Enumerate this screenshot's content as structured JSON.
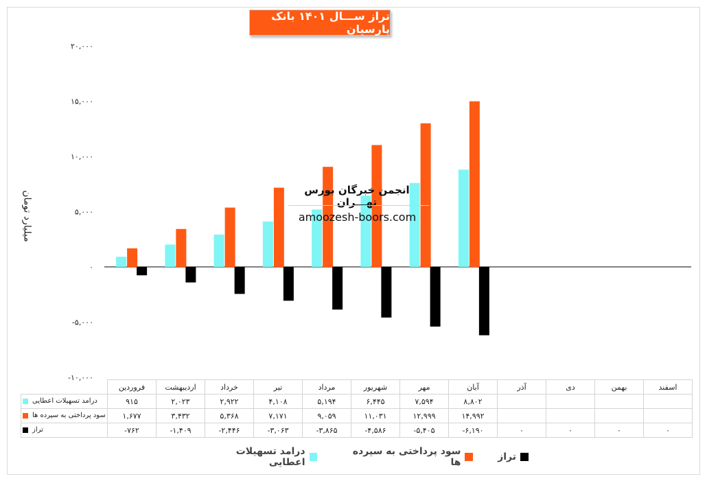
{
  "title": "تراز ســـال ۱۴۰۱ بانک پارسیان",
  "watermark": {
    "line1": "انجمن خبرگان بورس تهـــران",
    "line2": "amoozesh-boors.com"
  },
  "colors": {
    "income": "#7ff5f5",
    "paid": "#ff5a14",
    "balance": "#000000",
    "title_bg": "#ff5a14"
  },
  "chart_data": {
    "type": "bar",
    "title": "تراز ســـال ۱۴۰۱ بانک پارسیان",
    "ylabel": "میلیارد تومان",
    "ylim": [
      -10000,
      20000
    ],
    "yticks": [
      -10000,
      -5000,
      0,
      5000,
      10000,
      15000,
      20000
    ],
    "ytick_labels": [
      "-۱۰,۰۰۰",
      "-۵,۰۰۰",
      "۰",
      "۵,۰۰۰",
      "۱۰,۰۰۰",
      "۱۵,۰۰۰",
      "۲۰,۰۰۰"
    ],
    "legend_position": "bottom",
    "categories": [
      "فروردین",
      "اردیبهشت",
      "خرداد",
      "تیر",
      "مرداد",
      "شهریور",
      "مهر",
      "آبان",
      "آذر",
      "دی",
      "بهمن",
      "اسفند"
    ],
    "series": [
      {
        "name": "درامد تسهیلات اعطایی",
        "key": "income",
        "values": [
          915,
          2023,
          2922,
          4108,
          5194,
          6445,
          7594,
          8802,
          null,
          null,
          null,
          null
        ],
        "labels": [
          "۹۱۵",
          "۲,۰۲۳",
          "۲,۹۲۲",
          "۴,۱۰۸",
          "۵,۱۹۴",
          "۶,۴۴۵",
          "۷,۵۹۴",
          "۸,۸۰۲",
          "",
          "",
          "",
          ""
        ]
      },
      {
        "name": "سود پرداختی به سپرده ها",
        "key": "paid",
        "values": [
          1677,
          3432,
          5368,
          7171,
          9059,
          11031,
          12999,
          14992,
          null,
          null,
          null,
          null
        ],
        "labels": [
          "۱,۶۷۷",
          "۳,۴۳۲",
          "۵,۳۶۸",
          "۷,۱۷۱",
          "۹,۰۵۹",
          "۱۱,۰۳۱",
          "۱۲,۹۹۹",
          "۱۴,۹۹۲",
          "",
          "",
          "",
          ""
        ]
      },
      {
        "name": "تراز",
        "key": "balance",
        "values": [
          -762,
          -1409,
          -2446,
          -3063,
          -3865,
          -4586,
          -5405,
          -6190,
          0,
          0,
          0,
          0
        ],
        "labels": [
          "-۷۶۲",
          "-۱,۴۰۹",
          "-۲,۴۴۶",
          "-۳,۰۶۳",
          "-۳,۸۶۵",
          "-۴,۵۸۶",
          "-۵,۴۰۵",
          "-۶,۱۹۰",
          "۰",
          "۰",
          "۰",
          "۰"
        ]
      }
    ],
    "table_row_labels": [
      "درامد تسهیلات اعطایی",
      "سود پرداختی به سپرده ها",
      "تراز"
    ],
    "legend": [
      "درامد تسهیلات اعطایی",
      "سود پرداختی به سپرده ها",
      "تراز"
    ]
  }
}
